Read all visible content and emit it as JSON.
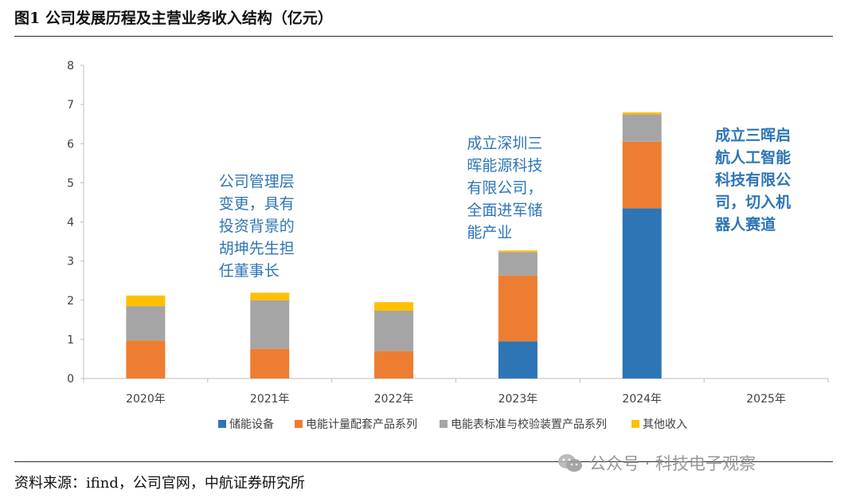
{
  "figure": {
    "title": "图1  公司发展历程及主营业务收入结构（亿元）",
    "source": "资料来源：ifind，公司官网，中航证券研究所",
    "watermark": "公众号 · 科技电子观察"
  },
  "chart_data": {
    "type": "bar",
    "stacked": true,
    "categories": [
      "2020年",
      "2021年",
      "2022年",
      "2023年",
      "2024年",
      "2025年"
    ],
    "ylim": [
      0,
      8
    ],
    "yticks": [
      "0",
      "1",
      "2",
      "3",
      "4",
      "5",
      "6",
      "7",
      "8"
    ],
    "grid": false,
    "legend_position": "bottom",
    "series": [
      {
        "name": "储能设备",
        "color": "#2e75b6",
        "values": [
          0,
          0,
          0,
          0.95,
          4.35,
          0
        ]
      },
      {
        "name": "电能计量配套产品系列",
        "color": "#ed7d31",
        "values": [
          0.97,
          0.76,
          0.7,
          1.68,
          1.7,
          0
        ]
      },
      {
        "name": "电能表标准与校验装置产品系列",
        "color": "#a5a5a5",
        "values": [
          0.88,
          1.24,
          1.03,
          0.6,
          0.7,
          0
        ]
      },
      {
        "name": "其他收入",
        "color": "#ffc000",
        "values": [
          0.27,
          0.19,
          0.22,
          0.04,
          0.05,
          0
        ]
      }
    ],
    "annotations": [
      {
        "lines": [
          "公司管理层",
          "变更，具有",
          "投资背景的",
          "胡坤先生担",
          "任董事长"
        ],
        "bold": false
      },
      {
        "lines": [
          "成立深圳三",
          "晖能源科技",
          "有限公司，",
          "全面进军储",
          "能产业"
        ],
        "bold": false
      },
      {
        "lines": [
          "成立三晖启",
          "航人工智能",
          "科技有限公",
          "司，切入机",
          "器人赛道"
        ],
        "bold": true
      }
    ]
  }
}
